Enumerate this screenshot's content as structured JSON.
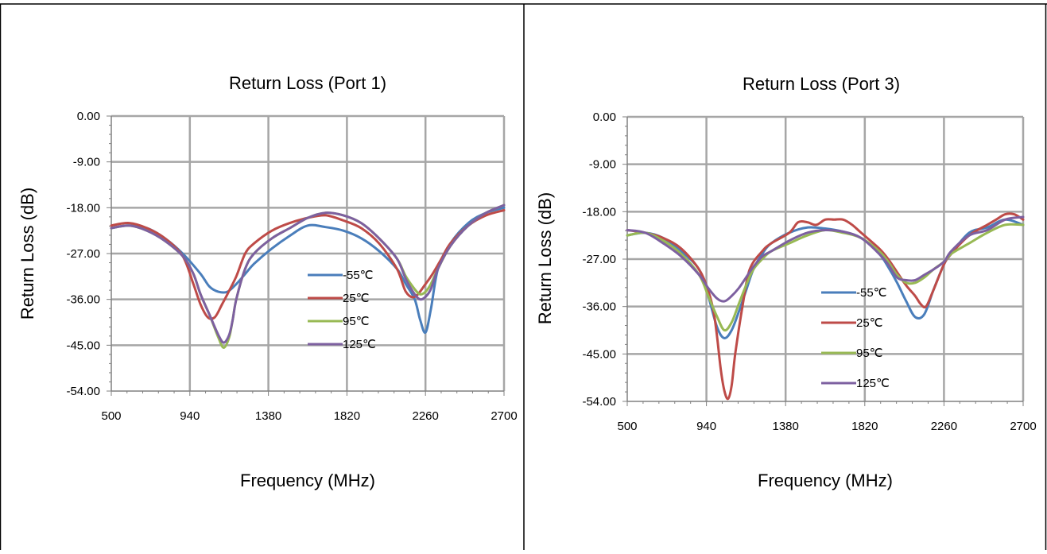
{
  "chart_data": [
    {
      "type": "line",
      "title": "Return Loss (Port 1)",
      "xlabel": "Frequency (MHz)",
      "ylabel": "Return Loss (dB)",
      "xlim": [
        500,
        2700
      ],
      "ylim": [
        -54,
        0
      ],
      "x_ticks": [
        "500",
        "940",
        "1380",
        "1820",
        "2260",
        "2700"
      ],
      "y_ticks": [
        "0.00",
        "-9.00",
        "-18.00",
        "-27.00",
        "-36.00",
        "-45.00",
        "-54.00"
      ],
      "grid": true,
      "legend_position": "right-inside",
      "series": [
        {
          "name": "-55℃",
          "color": "#4a7ebb",
          "x": [
            500,
            600,
            700,
            800,
            900,
            1000,
            1050,
            1100,
            1150,
            1200,
            1250,
            1300,
            1400,
            1500,
            1600,
            1700,
            1800,
            1900,
            2000,
            2100,
            2150,
            2200,
            2230,
            2260,
            2290,
            2330,
            2400,
            2500,
            2600,
            2700
          ],
          "y": [
            -22,
            -21.5,
            -22,
            -24,
            -27,
            -31,
            -33.5,
            -34.5,
            -34.5,
            -33,
            -31,
            -29,
            -26,
            -23.5,
            -21.5,
            -21.8,
            -22.5,
            -24,
            -26.5,
            -30,
            -33,
            -36,
            -40,
            -42.5,
            -38,
            -30,
            -25,
            -21,
            -19,
            -18
          ]
        },
        {
          "name": "25℃",
          "color": "#be4b48",
          "x": [
            500,
            600,
            700,
            800,
            900,
            960,
            1000,
            1040,
            1080,
            1120,
            1150,
            1200,
            1250,
            1300,
            1400,
            1500,
            1600,
            1700,
            1800,
            1900,
            2000,
            2100,
            2150,
            2200,
            2260,
            2300,
            2350,
            2400,
            2500,
            2600,
            2700
          ],
          "y": [
            -21.5,
            -21,
            -22,
            -24,
            -27.5,
            -33,
            -37,
            -39.5,
            -39.5,
            -37,
            -35,
            -31.5,
            -27,
            -25,
            -22.5,
            -21,
            -20,
            -19.5,
            -20.5,
            -22,
            -25,
            -30,
            -34.5,
            -35.5,
            -33,
            -31,
            -28,
            -25,
            -21.5,
            -19.5,
            -18.5
          ]
        },
        {
          "name": "95℃",
          "color": "#98b954",
          "x": [
            500,
            600,
            700,
            800,
            900,
            960,
            1000,
            1050,
            1100,
            1130,
            1160,
            1180,
            1200,
            1250,
            1300,
            1400,
            1500,
            1600,
            1700,
            1800,
            1900,
            2000,
            2100,
            2150,
            2200,
            2230,
            2260,
            2290,
            2330,
            2400,
            2500,
            2600,
            2700
          ],
          "y": [
            -22,
            -21.5,
            -22.5,
            -24.5,
            -27.5,
            -31,
            -35,
            -39,
            -43.5,
            -45.5,
            -43.5,
            -40,
            -36,
            -30,
            -27,
            -24,
            -22,
            -20,
            -19,
            -19.5,
            -21,
            -24,
            -28,
            -31.5,
            -34,
            -35,
            -34.5,
            -33,
            -30,
            -25.5,
            -21.5,
            -19,
            -17.5
          ]
        },
        {
          "name": "125℃",
          "color": "#7d60a0",
          "x": [
            500,
            600,
            700,
            800,
            900,
            960,
            1000,
            1050,
            1100,
            1130,
            1160,
            1180,
            1200,
            1250,
            1300,
            1400,
            1500,
            1600,
            1700,
            1800,
            1900,
            2000,
            2100,
            2150,
            2200,
            2230,
            2260,
            2290,
            2330,
            2400,
            2500,
            2600,
            2700
          ],
          "y": [
            -22,
            -21.5,
            -22.5,
            -24.5,
            -27.5,
            -31,
            -35,
            -39,
            -43,
            -44.5,
            -43,
            -40,
            -36,
            -30,
            -27,
            -24,
            -22,
            -20,
            -19,
            -19.5,
            -21,
            -24,
            -28,
            -32,
            -35,
            -36,
            -35.5,
            -34,
            -30,
            -25.5,
            -21.5,
            -19,
            -17.5
          ]
        }
      ]
    },
    {
      "type": "line",
      "title": "Return Loss (Port 3)",
      "xlabel": "Frequency (MHz)",
      "ylabel": "Return Loss (dB)",
      "xlim": [
        500,
        2700
      ],
      "ylim": [
        -54,
        0
      ],
      "x_ticks": [
        "500",
        "940",
        "1380",
        "1820",
        "2260",
        "2700"
      ],
      "y_ticks": [
        "0.00",
        "-9.00",
        "-18.00",
        "-27.00",
        "-36.00",
        "-45.00",
        "-54.00"
      ],
      "grid": true,
      "legend_position": "right-inside",
      "series": [
        {
          "name": "-55℃",
          "color": "#4a7ebb",
          "x": [
            500,
            600,
            700,
            800,
            900,
            950,
            1000,
            1040,
            1080,
            1120,
            1160,
            1200,
            1250,
            1300,
            1400,
            1500,
            1600,
            1700,
            1800,
            1900,
            1950,
            2000,
            2050,
            2100,
            2150,
            2200,
            2260,
            2300,
            2400,
            2500,
            2600,
            2700
          ],
          "y": [
            -22.5,
            -22,
            -23,
            -25.5,
            -29,
            -34,
            -40,
            -42,
            -40.5,
            -37,
            -33,
            -29,
            -26,
            -24,
            -22,
            -21,
            -21.2,
            -21.8,
            -23,
            -26,
            -28.5,
            -31.5,
            -35,
            -38,
            -37.5,
            -33,
            -28,
            -26,
            -22,
            -21,
            -19.5,
            -20.5
          ]
        },
        {
          "name": "25℃",
          "color": "#be4b48",
          "x": [
            500,
            600,
            700,
            800,
            900,
            950,
            980,
            1000,
            1020,
            1040,
            1060,
            1080,
            1100,
            1140,
            1180,
            1250,
            1300,
            1400,
            1450,
            1500,
            1550,
            1600,
            1650,
            1700,
            1750,
            1800,
            1900,
            1950,
            2000,
            2050,
            2100,
            2130,
            2160,
            2200,
            2260,
            2300,
            2400,
            2500,
            2550,
            2600,
            2650,
            2700
          ],
          "y": [
            -21.5,
            -22,
            -23,
            -25,
            -29,
            -33,
            -37,
            -42,
            -48,
            -52,
            -53.5,
            -51,
            -45,
            -36,
            -29,
            -25.5,
            -24,
            -22,
            -20,
            -20,
            -20.5,
            -19.5,
            -19.5,
            -19.5,
            -20.5,
            -22,
            -25,
            -27,
            -29.5,
            -32,
            -34,
            -35.5,
            -36,
            -33,
            -28,
            -26,
            -22.5,
            -20.5,
            -19.5,
            -18.5,
            -18.5,
            -19.5
          ]
        },
        {
          "name": "95℃",
          "color": "#98b954",
          "x": [
            500,
            600,
            700,
            800,
            900,
            950,
            1000,
            1040,
            1080,
            1120,
            1160,
            1200,
            1250,
            1300,
            1400,
            1500,
            1600,
            1700,
            1800,
            1900,
            1950,
            2000,
            2050,
            2100,
            2150,
            2200,
            2260,
            2300,
            2400,
            2500,
            2600,
            2700
          ],
          "y": [
            -22.5,
            -22,
            -23.5,
            -26,
            -30,
            -34,
            -38,
            -40.5,
            -39,
            -35.5,
            -32,
            -29,
            -27,
            -25.5,
            -24,
            -22.5,
            -21.5,
            -22,
            -23,
            -25.5,
            -27.5,
            -30,
            -31.5,
            -31.5,
            -30.5,
            -29,
            -27.5,
            -26,
            -24,
            -22,
            -20.5,
            -20.5
          ]
        },
        {
          "name": "125℃",
          "color": "#7d60a0",
          "x": [
            500,
            600,
            700,
            800,
            900,
            950,
            1000,
            1040,
            1080,
            1120,
            1160,
            1200,
            1250,
            1300,
            1400,
            1500,
            1600,
            1700,
            1800,
            1900,
            1950,
            2000,
            2050,
            2100,
            2150,
            2200,
            2260,
            2300,
            2400,
            2500,
            2600,
            2700
          ],
          "y": [
            -21.5,
            -22,
            -24,
            -26.5,
            -30,
            -32.5,
            -34.5,
            -35,
            -34,
            -32.5,
            -30.5,
            -28.5,
            -26.5,
            -25.5,
            -23.5,
            -22,
            -21.5,
            -21.8,
            -23,
            -26,
            -28,
            -30.5,
            -31,
            -31,
            -30,
            -29,
            -27.5,
            -25.5,
            -22.5,
            -21.5,
            -19.5,
            -19
          ]
        }
      ]
    }
  ]
}
